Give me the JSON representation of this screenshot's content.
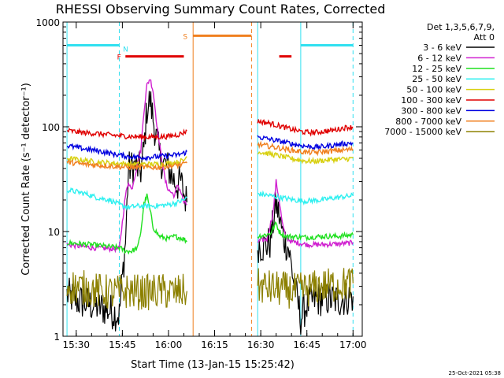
{
  "page": {
    "title": "RHESSI Observing Summary Count Rates, Corrected",
    "footer_date": "25-Oct-2021 05:38"
  },
  "legend": {
    "header_line1": "Det 1,3,5,6,7,9,",
    "header_line2": "Att 0"
  },
  "colors": {
    "background": "#ffffff",
    "axes": "#000000",
    "3-6": "#000000",
    "6-12": "#d020d0",
    "12-25": "#20e020",
    "25-50": "#30f0f0",
    "50-100": "#d8d010",
    "100-300": "#e00000",
    "300-800": "#0000e0",
    "800-7000": "#f08020",
    "7000-15000": "#8c8000",
    "night": "#30e0f0",
    "saa": "#f08020",
    "flare": "#e00000"
  },
  "chart_data": {
    "type": "line",
    "title": "RHESSI Observing Summary Count Rates, Corrected",
    "xlabel": "Start Time (13-Jan-15 15:25:42)",
    "ylabel": "Corrected Count Rate (s⁻¹ detector⁻¹)",
    "y_scale": "log",
    "ylim": [
      1,
      1000
    ],
    "x_range_minutes": [
      15.42,
      17.03
    ],
    "xlim": [
      "15:25:42",
      "17:03:00"
    ],
    "xticks": [
      {
        "t": "15:30",
        "label": "15:30"
      },
      {
        "t": "15:45",
        "label": "15:45"
      },
      {
        "t": "16:00",
        "label": "16:00"
      },
      {
        "t": "16:15",
        "label": "16:15"
      },
      {
        "t": "16:30",
        "label": "16:30"
      },
      {
        "t": "16:45",
        "label": "16:45"
      },
      {
        "t": "17:00",
        "label": "17:00"
      }
    ],
    "yticks": [
      {
        "v": 1,
        "label": "1"
      },
      {
        "v": 10,
        "label": "10"
      },
      {
        "v": 100,
        "label": "100"
      },
      {
        "v": 1000,
        "label": "1000"
      }
    ],
    "gaps": [
      [
        "16:06",
        "16:29"
      ]
    ],
    "series": [
      {
        "name": "3 - 6 keV",
        "color_key": "3-6",
        "segments": [
          [
            [
              "15:27",
              2.5
            ],
            [
              "15:30",
              2.2
            ],
            [
              "15:35",
              2.0
            ],
            [
              "15:40",
              1.8
            ],
            [
              "15:44",
              1.6
            ],
            [
              "15:46",
              8
            ],
            [
              "15:47",
              40
            ],
            [
              "15:49",
              42
            ],
            [
              "15:51",
              38
            ],
            [
              "15:52",
              60
            ],
            [
              "15:53",
              150
            ],
            [
              "15:54",
              180
            ],
            [
              "15:55",
              120
            ],
            [
              "15:56",
              80
            ],
            [
              "15:57",
              55
            ],
            [
              "15:58",
              45
            ],
            [
              "16:00",
              40
            ],
            [
              "16:02",
              30
            ],
            [
              "16:03",
              28
            ],
            [
              "16:04",
              30
            ],
            [
              "16:05",
              23
            ],
            [
              "16:06",
              19
            ]
          ],
          [
            [
              "16:29",
              7.5
            ],
            [
              "16:31",
              7.2
            ],
            [
              "16:33",
              7.8
            ],
            [
              "16:34",
              12
            ],
            [
              "16:35",
              18
            ],
            [
              "16:36",
              14
            ],
            [
              "16:37",
              9.5
            ],
            [
              "16:38",
              8
            ],
            [
              "16:39",
              7
            ],
            [
              "16:41",
              3
            ],
            [
              "16:43",
              1.5
            ],
            [
              "16:45",
              2
            ],
            [
              "16:47",
              2.2
            ],
            [
              "16:50",
              2.3
            ],
            [
              "16:55",
              2.2
            ],
            [
              "17:00",
              2.4
            ]
          ]
        ]
      },
      {
        "name": "6 - 12 keV",
        "color_key": "6-12",
        "segments": [
          [
            [
              "15:27",
              7.5
            ],
            [
              "15:35",
              7.0
            ],
            [
              "15:44",
              6.8
            ],
            [
              "15:46",
              22
            ],
            [
              "15:47",
              30
            ],
            [
              "15:48",
              25
            ],
            [
              "15:50",
              45
            ],
            [
              "15:51",
              60
            ],
            [
              "15:52",
              140
            ],
            [
              "15:53",
              250
            ],
            [
              "15:54",
              290
            ],
            [
              "15:55",
              220
            ],
            [
              "15:56",
              120
            ],
            [
              "15:57",
              70
            ],
            [
              "15:58",
              45
            ],
            [
              "15:59",
              30
            ],
            [
              "16:00",
              25
            ],
            [
              "16:02",
              22
            ],
            [
              "16:03",
              28
            ],
            [
              "16:04",
              24
            ],
            [
              "16:05",
              19
            ],
            [
              "16:06",
              18
            ]
          ],
          [
            [
              "16:29",
              8
            ],
            [
              "16:32",
              8.5
            ],
            [
              "16:34",
              15
            ],
            [
              "16:35",
              30
            ],
            [
              "16:36",
              20
            ],
            [
              "16:37",
              12
            ],
            [
              "16:38",
              9
            ],
            [
              "16:40",
              8
            ],
            [
              "16:45",
              7.5
            ],
            [
              "16:50",
              7.5
            ],
            [
              "16:55",
              7.6
            ],
            [
              "17:00",
              7.8
            ]
          ]
        ]
      },
      {
        "name": "12 - 25 keV",
        "color_key": "12-25",
        "segments": [
          [
            [
              "15:27",
              7.8
            ],
            [
              "15:35",
              7.5
            ],
            [
              "15:44",
              7.0
            ],
            [
              "15:46",
              6.5
            ],
            [
              "15:48",
              6.5
            ],
            [
              "15:50",
              7
            ],
            [
              "15:51",
              10
            ],
            [
              "15:52",
              18
            ],
            [
              "15:53",
              22
            ],
            [
              "15:54",
              16
            ],
            [
              "15:55",
              11
            ],
            [
              "15:57",
              9
            ],
            [
              "16:00",
              8.5
            ],
            [
              "16:02",
              9
            ],
            [
              "16:05",
              8.5
            ],
            [
              "16:06",
              8
            ]
          ],
          [
            [
              "16:29",
              9
            ],
            [
              "16:33",
              9.5
            ],
            [
              "16:35",
              12
            ],
            [
              "16:36",
              10
            ],
            [
              "16:38",
              9
            ],
            [
              "16:45",
              8.8
            ],
            [
              "16:50",
              9
            ],
            [
              "16:55",
              9
            ],
            [
              "17:00",
              9.3
            ]
          ]
        ]
      },
      {
        "name": "25 - 50 keV",
        "color_key": "25-50",
        "segments": [
          [
            [
              "15:27",
              25
            ],
            [
              "15:33",
              23
            ],
            [
              "15:37",
              21
            ],
            [
              "15:41",
              20
            ],
            [
              "15:44",
              18
            ],
            [
              "15:47",
              17
            ],
            [
              "15:50",
              17.5
            ],
            [
              "15:55",
              17.5
            ],
            [
              "16:00",
              18
            ],
            [
              "16:03",
              19
            ],
            [
              "16:05",
              20
            ],
            [
              "16:06",
              21
            ]
          ],
          [
            [
              "16:29",
              23
            ],
            [
              "16:33",
              22
            ],
            [
              "16:37",
              21
            ],
            [
              "16:41",
              20
            ],
            [
              "16:44",
              19.5
            ],
            [
              "16:47",
              19.8
            ],
            [
              "16:50",
              20
            ],
            [
              "16:54",
              21
            ],
            [
              "16:57",
              21.5
            ],
            [
              "17:00",
              22
            ]
          ]
        ]
      },
      {
        "name": "50 - 100 keV",
        "color_key": "50-100",
        "segments": [
          [
            [
              "15:27",
              50
            ],
            [
              "15:32",
              48
            ],
            [
              "15:37",
              46
            ],
            [
              "15:42",
              45
            ],
            [
              "15:47",
              44
            ],
            [
              "15:52",
              44
            ],
            [
              "15:57",
              44
            ],
            [
              "16:00",
              45
            ],
            [
              "16:03",
              46
            ],
            [
              "16:05",
              48
            ],
            [
              "16:06",
              52
            ]
          ],
          [
            [
              "16:29",
              58
            ],
            [
              "16:33",
              55
            ],
            [
              "16:37",
              52
            ],
            [
              "16:41",
              49
            ],
            [
              "16:45",
              47
            ],
            [
              "16:48",
              47
            ],
            [
              "16:51",
              48
            ],
            [
              "16:54",
              49
            ],
            [
              "16:57",
              49
            ],
            [
              "17:00",
              50
            ]
          ]
        ]
      },
      {
        "name": "100 - 300 keV",
        "color_key": "100-300",
        "segments": [
          [
            [
              "15:27",
              92
            ],
            [
              "15:32",
              88
            ],
            [
              "15:37",
              86
            ],
            [
              "15:42",
              83
            ],
            [
              "15:47",
              81
            ],
            [
              "15:52",
              80
            ],
            [
              "15:57",
              80
            ],
            [
              "16:00",
              81
            ],
            [
              "16:03",
              84
            ],
            [
              "16:05",
              88
            ],
            [
              "16:06",
              92
            ]
          ],
          [
            [
              "16:29",
              113
            ],
            [
              "16:33",
              108
            ],
            [
              "16:37",
              100
            ],
            [
              "16:41",
              93
            ],
            [
              "16:44",
              89
            ],
            [
              "16:47",
              88
            ],
            [
              "16:50",
              90
            ],
            [
              "16:53",
              92
            ],
            [
              "16:56",
              96
            ],
            [
              "16:58",
              99
            ],
            [
              "17:00",
              99
            ]
          ]
        ]
      },
      {
        "name": "300 - 800 keV",
        "color_key": "300-800",
        "segments": [
          [
            [
              "15:27",
              66
            ],
            [
              "15:32",
              62
            ],
            [
              "15:37",
              59
            ],
            [
              "15:42",
              55
            ],
            [
              "15:47",
              52
            ],
            [
              "15:52",
              51
            ],
            [
              "15:57",
              52
            ],
            [
              "16:00",
              53
            ],
            [
              "16:03",
              54
            ],
            [
              "16:05",
              56
            ],
            [
              "16:06",
              58
            ]
          ],
          [
            [
              "16:29",
              80
            ],
            [
              "16:33",
              76
            ],
            [
              "16:37",
              72
            ],
            [
              "16:41",
              68
            ],
            [
              "16:45",
              65
            ],
            [
              "16:48",
              64
            ],
            [
              "16:51",
              65
            ],
            [
              "16:54",
              67
            ],
            [
              "16:57",
              69
            ],
            [
              "17:00",
              70
            ]
          ]
        ]
      },
      {
        "name": "800 - 7000 keV",
        "color_key": "800-7000",
        "segments": [
          [
            [
              "15:27",
              46
            ],
            [
              "15:32",
              44
            ],
            [
              "15:37",
              43
            ],
            [
              "15:42",
              42
            ],
            [
              "15:47",
              41
            ],
            [
              "15:52",
              41
            ],
            [
              "15:57",
              41
            ],
            [
              "16:00",
              42
            ],
            [
              "16:03",
              43
            ],
            [
              "16:05",
              44
            ],
            [
              "16:06",
              45
            ]
          ],
          [
            [
              "16:29",
              68
            ],
            [
              "16:33",
              65
            ],
            [
              "16:37",
              62
            ],
            [
              "16:41",
              59
            ],
            [
              "16:45",
              57
            ],
            [
              "16:48",
              57
            ],
            [
              "16:51",
              58
            ],
            [
              "16:54",
              59
            ],
            [
              "16:57",
              60
            ],
            [
              "17:00",
              61
            ]
          ]
        ]
      },
      {
        "name": "7000 - 15000 keV",
        "color_key": "7000-15000",
        "segments": [
          [
            [
              "15:27",
              3.0
            ],
            [
              "15:32",
              2.9
            ],
            [
              "15:37",
              2.7
            ],
            [
              "15:42",
              2.6
            ],
            [
              "15:47",
              2.7
            ],
            [
              "15:52",
              2.6
            ],
            [
              "15:57",
              2.7
            ],
            [
              "16:02",
              2.6
            ],
            [
              "16:06",
              2.7
            ]
          ],
          [
            [
              "16:29",
              3.0
            ],
            [
              "16:33",
              2.9
            ],
            [
              "16:37",
              2.8
            ],
            [
              "16:41",
              2.7
            ],
            [
              "16:45",
              2.8
            ],
            [
              "16:50",
              3.0
            ],
            [
              "16:55",
              3.1
            ],
            [
              "17:00",
              3.2
            ]
          ]
        ]
      }
    ],
    "vertical_markers": [
      {
        "t": "15:27",
        "kind": "night",
        "style": "solid"
      },
      {
        "t": "15:44",
        "kind": "night",
        "style": "dashed"
      },
      {
        "t": "16:08",
        "kind": "saa",
        "style": "solid"
      },
      {
        "t": "16:27",
        "kind": "saa",
        "style": "dashed"
      },
      {
        "t": "16:29",
        "kind": "night",
        "style": "solid"
      },
      {
        "t": "16:43",
        "kind": "night",
        "style": "solid"
      },
      {
        "t": "17:00",
        "kind": "night",
        "style": "dashed"
      }
    ],
    "bars": [
      {
        "label": "N",
        "kind": "night",
        "start": "15:27",
        "end": "15:44",
        "level": 600
      },
      {
        "label": "",
        "kind": "night",
        "start": "16:43",
        "end": "17:00",
        "level": 600
      },
      {
        "label": "S",
        "kind": "saa",
        "start": "16:08",
        "end": "16:27",
        "level": 740
      },
      {
        "label": "F",
        "kind": "flare",
        "start": "15:46",
        "end": "16:05",
        "level": 470
      },
      {
        "label": "",
        "kind": "flare",
        "start": "16:36",
        "end": "16:40",
        "level": 470
      }
    ]
  }
}
